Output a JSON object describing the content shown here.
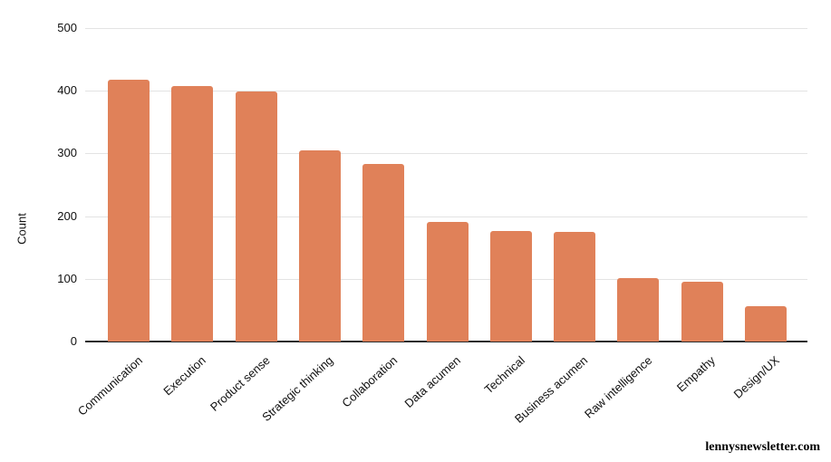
{
  "chart_data": {
    "type": "bar",
    "title": "",
    "categories": [
      "Communication",
      "Execution",
      "Product sense",
      "Strategic thinking",
      "Collaboration",
      "Data acumen",
      "Technical",
      "Business acumen",
      "Raw intelligence",
      "Empathy",
      "Design/UX"
    ],
    "values": [
      418,
      407,
      399,
      305,
      283,
      191,
      177,
      175,
      101,
      95,
      56
    ],
    "xlabel": "",
    "ylabel": "Count",
    "ylim": [
      0,
      500
    ],
    "yticks": [
      0,
      100,
      200,
      300,
      400,
      500
    ],
    "grid": true,
    "legend": false,
    "bar_color": "#E08159"
  },
  "colors": {
    "background": "#FFFFFF",
    "gridline": "#E3E3E3",
    "axis_line": "#2B2B2B",
    "bar": "#E08159",
    "text": "#111111"
  },
  "footer": {
    "watermark": "lennysnewsletter.com"
  }
}
